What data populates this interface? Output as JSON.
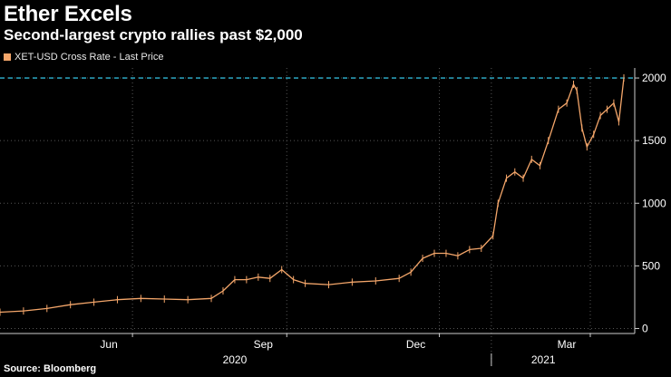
{
  "header": {
    "title": "Ether Excels",
    "subtitle": "Second-largest crypto rallies past $2,000"
  },
  "legend": {
    "label": "XET-USD Cross Rate - Last Price",
    "color": "#f4a66a"
  },
  "footer": {
    "source": "Source: Bloomberg"
  },
  "colors": {
    "background": "#000000",
    "series": "#f4a66a",
    "reference_line": "#2fb7d6",
    "grid": "#555555"
  },
  "chart_data": {
    "type": "line",
    "title": "Ether Excels",
    "subtitle": "Second-largest crypto rallies past $2,000",
    "xlabel": "",
    "ylabel": "",
    "x_range": [
      "2020-03-14",
      "2021-03-21"
    ],
    "ylim": [
      -40,
      2080
    ],
    "y_ticks": [
      0,
      500,
      1000,
      1500,
      2000
    ],
    "y_tick_labels": [
      "0",
      "500",
      "1000",
      "1500",
      "2000"
    ],
    "x_month_ticks": [
      {
        "date": "2020-06-01",
        "label": "Jun"
      },
      {
        "date": "2020-09-01",
        "label": "Sep"
      },
      {
        "date": "2020-12-01",
        "label": "Dec"
      },
      {
        "date": "2021-03-01",
        "label": "Mar"
      }
    ],
    "x_year_labels": [
      {
        "label": "2020",
        "date": "2020-08-01"
      },
      {
        "label": "2021",
        "date": "2021-02-01"
      }
    ],
    "year_divider": "2021-01-01",
    "reference_line": {
      "y": 2000,
      "style": "dashed"
    },
    "grid": true,
    "legend_position": "top-left",
    "series": [
      {
        "name": "XET-USD Cross Rate - Last Price",
        "x": [
          "2020-03-14",
          "2020-03-28",
          "2020-04-11",
          "2020-04-25",
          "2020-05-09",
          "2020-05-23",
          "2020-06-06",
          "2020-06-20",
          "2020-07-04",
          "2020-07-18",
          "2020-07-25",
          "2020-08-01",
          "2020-08-08",
          "2020-08-15",
          "2020-08-22",
          "2020-08-29",
          "2020-09-05",
          "2020-09-12",
          "2020-09-26",
          "2020-10-10",
          "2020-10-24",
          "2020-11-07",
          "2020-11-14",
          "2020-11-21",
          "2020-11-28",
          "2020-12-05",
          "2020-12-12",
          "2020-12-19",
          "2020-12-26",
          "2021-01-02",
          "2021-01-05",
          "2021-01-10",
          "2021-01-15",
          "2021-01-20",
          "2021-01-25",
          "2021-01-30",
          "2021-02-04",
          "2021-02-10",
          "2021-02-15",
          "2021-02-19",
          "2021-02-21",
          "2021-02-24",
          "2021-02-27",
          "2021-03-03",
          "2021-03-07",
          "2021-03-11",
          "2021-03-15",
          "2021-03-18",
          "2021-03-21"
        ],
        "y": [
          130,
          140,
          160,
          190,
          210,
          230,
          240,
          235,
          230,
          240,
          300,
          390,
          390,
          410,
          400,
          470,
          390,
          360,
          350,
          370,
          380,
          400,
          450,
          560,
          600,
          600,
          580,
          630,
          640,
          740,
          1000,
          1200,
          1250,
          1200,
          1350,
          1300,
          1500,
          1750,
          1800,
          1950,
          1900,
          1600,
          1450,
          1550,
          1700,
          1750,
          1800,
          1650,
          2000
        ]
      }
    ]
  }
}
